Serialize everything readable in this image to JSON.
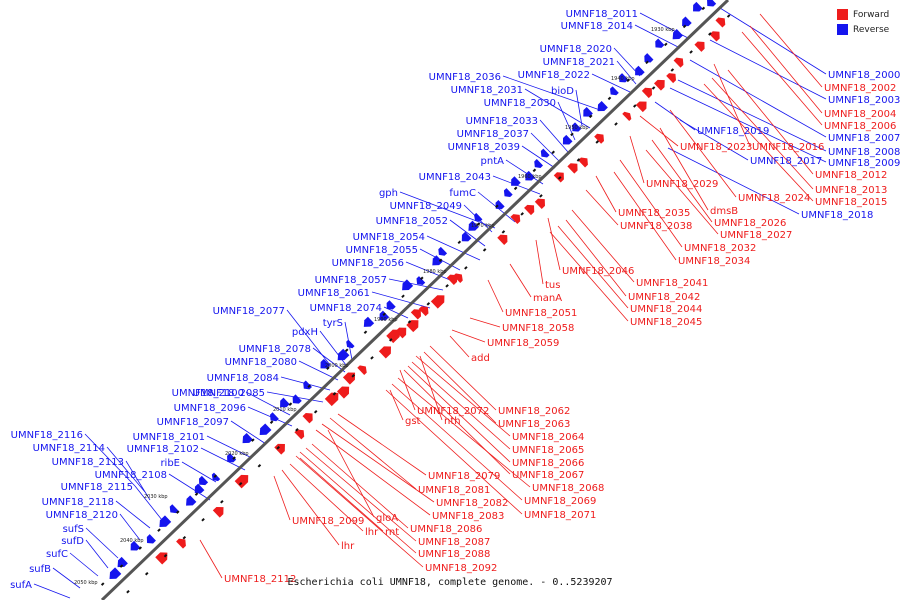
{
  "legend": {
    "forward_label": "Forward",
    "reverse_label": "Reverse",
    "forward_color": "#ee1c1c",
    "reverse_color": "#1515ee"
  },
  "colors": {
    "forward": "#ee1c1c",
    "reverse": "#1515ee",
    "axis": "#555555",
    "tick": "#111111"
  },
  "caption": "Escherichia coli UMNF18, complete genome. - 0..5239207",
  "ticks": [
    "1930 kbp",
    "1940 kbp",
    "1950 kbp",
    "1960 kbp",
    "1970 kbp",
    "1980 kbp",
    "1990 kbp",
    "2000 kbp",
    "2010 kbp",
    "2020 kbp",
    "2030 kbp",
    "2040 kbp",
    "2050 kbp"
  ],
  "reverse_labels": [
    "UMNF18_2011",
    "UMNF18_2014",
    "UMNF18_2020",
    "UMNF18_2021",
    "UMNF18_2036",
    "UMNF18_2022",
    "UMNF18_2031",
    "bioD",
    "UMNF18_2030",
    "UMNF18_2033",
    "UMNF18_2037",
    "UMNF18_2039",
    "pntA",
    "UMNF18_2043",
    "fumC",
    "gph",
    "UMNF18_2049",
    "UMNF18_2052",
    "UMNF18_2054",
    "UMNF18_2055",
    "UMNF18_2056",
    "UMNF18_2057",
    "UMNF18_2061",
    "tyrS",
    "UMNF18_2074",
    "UMNF18_2077",
    "pdxH",
    "UMNF18_2078",
    "UMNF18_2080",
    "UMNF18_2084",
    "UMNF18_2085",
    "UMNF18_2100",
    "UMNF18_2096",
    "UMNF18_2097",
    "UMNF18_2116",
    "UMNF18_2101",
    "UMNF18_2114",
    "UMNF18_2102",
    "UMNF18_2113",
    "ribE",
    "UMNF18_2108",
    "UMNF18_2115",
    "UMNF18_2118",
    "UMNF18_2120",
    "sufS",
    "sufD",
    "sufC",
    "sufB",
    "sufA",
    "UMNF18_2000",
    "UMNF18_2003",
    "UMNF18_2007",
    "UMNF18_2008",
    "UMNF18_2009",
    "UMNF18_2019",
    "UMNF18_2017",
    "UMNF18_2018"
  ],
  "forward_labels": [
    "UMNF18_2002",
    "UMNF18_2004",
    "UMNF18_2006",
    "UMNF18_2016",
    "UMNF18_2023",
    "UMNF18_2012",
    "UMNF18_2013",
    "UMNF18_2015",
    "UMNF18_2029",
    "UMNF18_2024",
    "dmsB",
    "UMNF18_2035",
    "UMNF18_2026",
    "UMNF18_2038",
    "UMNF18_2027",
    "UMNF18_2032",
    "UMNF18_2034",
    "UMNF18_2046",
    "tus",
    "UMNF18_2041",
    "manA",
    "UMNF18_2042",
    "UMNF18_2044",
    "UMNF18_2051",
    "UMNF18_2045",
    "UMNF18_2058",
    "UMNF18_2059",
    "add",
    "UMNF18_2072",
    "UMNF18_2062",
    "gst",
    "nth",
    "UMNF18_2063",
    "UMNF18_2064",
    "UMNF18_2065",
    "UMNF18_2066",
    "UMNF18_2067",
    "UMNF18_2079",
    "UMNF18_2081",
    "UMNF18_2068",
    "UMNF18_2082",
    "UMNF18_2069",
    "UMNF18_2083",
    "UMNF18_2071",
    "UMNF18_2099",
    "gloA",
    "lhr",
    "rnt",
    "UMNF18_2086",
    "UMNF18_2087",
    "lhr",
    "UMNF18_2088",
    "UMNF18_2092",
    "UMNF18_2112"
  ]
}
